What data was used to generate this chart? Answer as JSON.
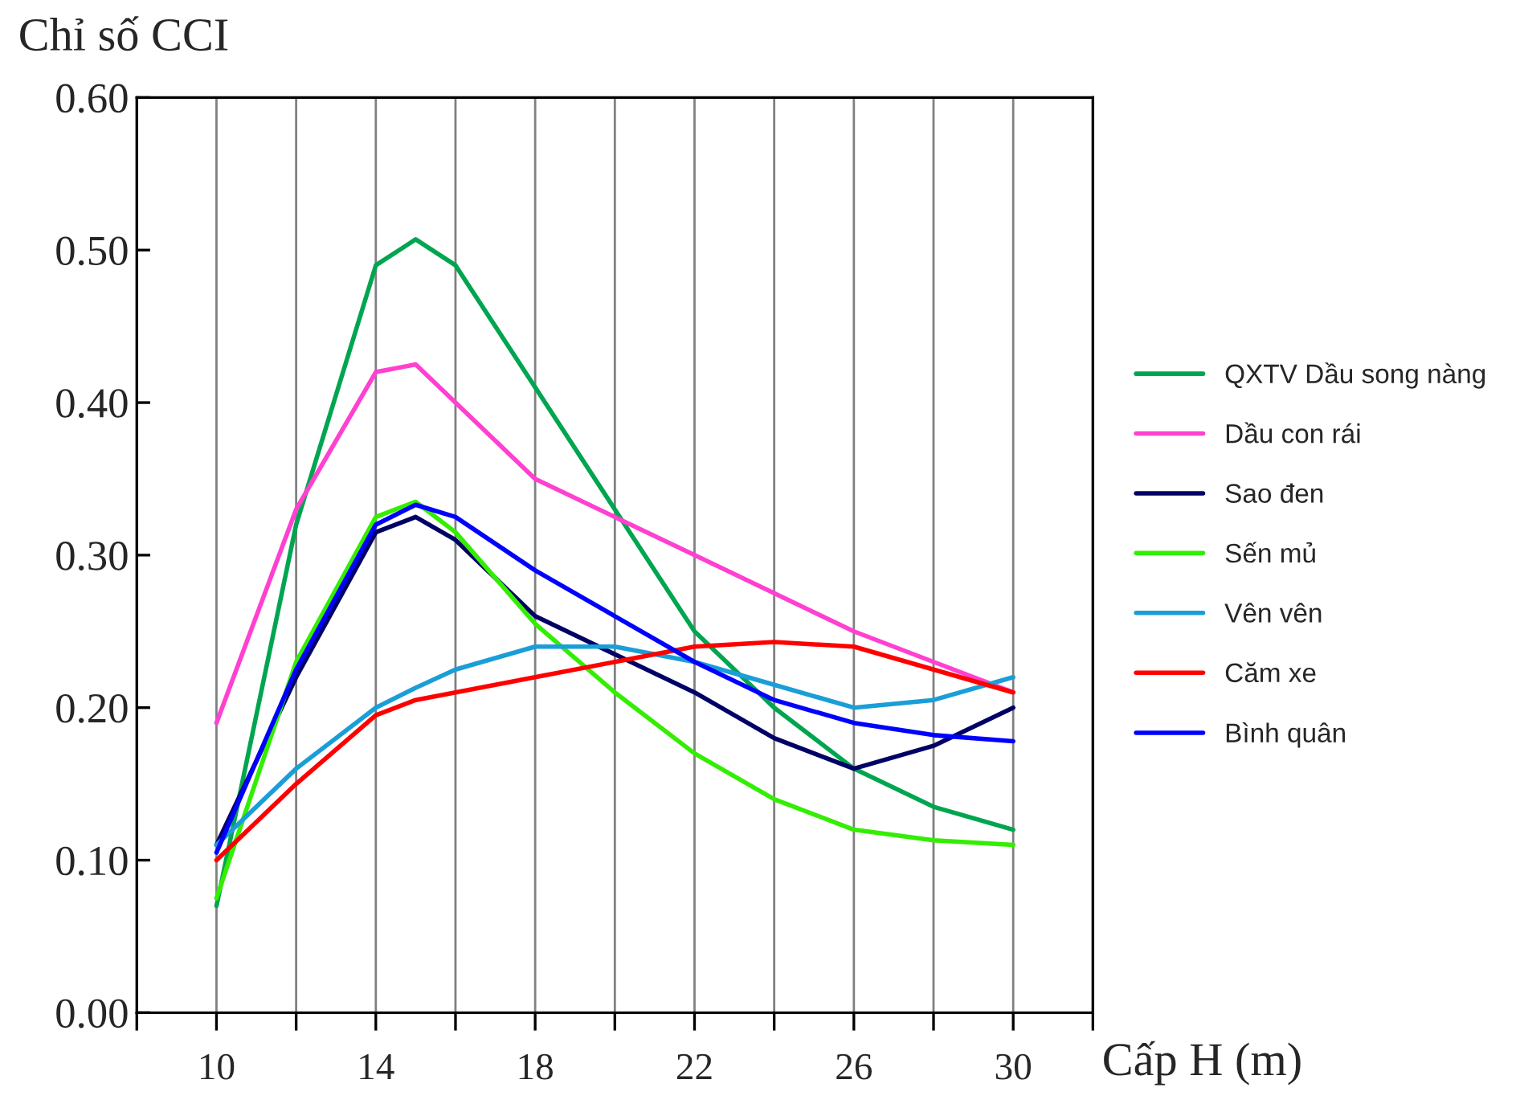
{
  "chart_data": {
    "type": "line",
    "ylabel": "Chỉ số CCI",
    "xlabel": "Cấp H (m)",
    "x": [
      10,
      12,
      14,
      15,
      16,
      18,
      20,
      22,
      24,
      26,
      28,
      30
    ],
    "series": [
      {
        "name": "QXTV Dầu song nàng",
        "color": "#00a550",
        "values": [
          0.07,
          0.32,
          0.49,
          0.507,
          0.49,
          0.41,
          0.33,
          0.25,
          0.2,
          0.16,
          0.135,
          0.12
        ]
      },
      {
        "name": "Dầu con rái",
        "color": "#ff40d0",
        "values": [
          0.19,
          0.33,
          0.42,
          0.425,
          0.4,
          0.35,
          0.325,
          0.3,
          0.275,
          0.25,
          0.23,
          0.21
        ]
      },
      {
        "name": "Sao đen",
        "color": "#000066",
        "values": [
          0.11,
          0.22,
          0.315,
          0.325,
          0.31,
          0.26,
          0.235,
          0.21,
          0.18,
          0.16,
          0.175,
          0.2
        ]
      },
      {
        "name": "Sến mủ",
        "color": "#33ee00",
        "values": [
          0.075,
          0.23,
          0.325,
          0.335,
          0.315,
          0.255,
          0.21,
          0.17,
          0.14,
          0.12,
          0.113,
          0.11
        ]
      },
      {
        "name": "Vên vên",
        "color": "#1a9ed8",
        "values": [
          0.11,
          0.16,
          0.2,
          0.213,
          0.225,
          0.24,
          0.24,
          0.23,
          0.215,
          0.2,
          0.205,
          0.22
        ]
      },
      {
        "name": "Căm xe",
        "color": "#ff0000",
        "values": [
          0.1,
          0.15,
          0.195,
          0.205,
          0.21,
          0.22,
          0.23,
          0.24,
          0.243,
          0.24,
          0.225,
          0.21
        ]
      },
      {
        "name": "Bình quân",
        "color": "#0000ff",
        "values": [
          0.105,
          0.225,
          0.32,
          0.333,
          0.325,
          0.29,
          0.26,
          0.23,
          0.205,
          0.19,
          0.182,
          0.178
        ]
      }
    ],
    "xlim": [
      8,
      32
    ],
    "xticks": [
      {
        "value": 8,
        "label": null
      },
      10,
      {
        "value": 12,
        "label": null
      },
      14,
      {
        "value": 16,
        "label": null
      },
      18,
      {
        "value": 20,
        "label": null
      },
      22,
      {
        "value": 24,
        "label": null
      },
      26,
      {
        "value": 28,
        "label": null
      },
      30,
      {
        "value": 32,
        "label": null
      }
    ],
    "ylim": [
      0,
      0.6
    ],
    "yticks": [
      {
        "value": 0,
        "label": "0.00"
      },
      {
        "value": 0.1,
        "label": "0.10"
      },
      {
        "value": 0.2,
        "label": "0.20"
      },
      {
        "value": 0.3,
        "label": "0.30"
      },
      {
        "value": 0.4,
        "label": "0.40"
      },
      {
        "value": 0.5,
        "label": "0.50"
      },
      {
        "value": 0.6,
        "label": "0.60"
      }
    ],
    "grid": "x",
    "legend": "right",
    "marker": "none",
    "line_style": "solid"
  }
}
